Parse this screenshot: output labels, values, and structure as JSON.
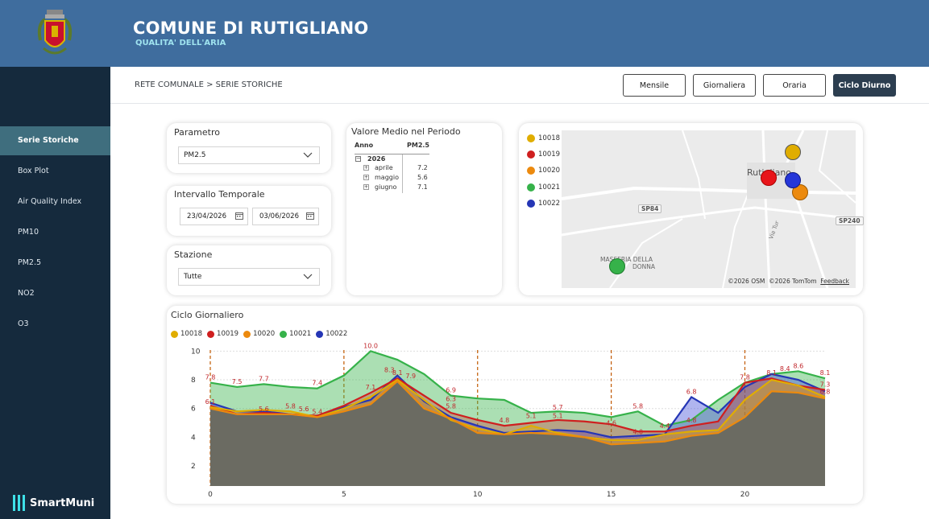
{
  "header": {
    "title": "COMUNE DI RUTIGLIANO",
    "subtitle": "QUALITA' DELL'ARIA"
  },
  "sidebar": {
    "items": [
      {
        "label": "Serie Storiche",
        "active": true
      },
      {
        "label": "Box Plot"
      },
      {
        "label": "Air Quality Index"
      },
      {
        "label": "PM10"
      },
      {
        "label": "PM2.5"
      },
      {
        "label": "NO2"
      },
      {
        "label": "O3"
      }
    ],
    "brand": "SmartMuni"
  },
  "breadcrumb": "RETE COMUNALE > SERIE STORICHE",
  "view_buttons": [
    {
      "label": "Mensile"
    },
    {
      "label": "Giornaliera"
    },
    {
      "label": "Oraria"
    },
    {
      "label": "Ciclo Diurno",
      "active": true
    }
  ],
  "filters": {
    "parametro": {
      "title": "Parametro",
      "value": "PM2.5"
    },
    "intervallo": {
      "title": "Intervallo Temporale",
      "start": "23/04/2026",
      "end": "03/06/2026"
    },
    "stazione": {
      "title": "Stazione",
      "value": "Tutte"
    }
  },
  "valore_medio": {
    "title": "Valore Medio nel Periodo",
    "col_anno": "Anno",
    "col_param": "PM2.5",
    "year": "2026",
    "rows": [
      {
        "month": "aprile",
        "value": "7.2"
      },
      {
        "month": "maggio",
        "value": "5.6"
      },
      {
        "month": "giugno",
        "value": "7.1"
      }
    ]
  },
  "map": {
    "legend": [
      {
        "id": "10018",
        "color": "#e0ad00"
      },
      {
        "id": "10019",
        "color": "#cf1f1f"
      },
      {
        "id": "10020",
        "color": "#ec8a0e"
      },
      {
        "id": "10021",
        "color": "#36b24a"
      },
      {
        "id": "10022",
        "color": "#2536b5"
      }
    ],
    "place_label": "Rutigliano",
    "road_sp84": "SP84",
    "road_sp240": "SP240",
    "area_label_1": "MASSERIA DELLA",
    "area_label_2": "DONNA",
    "road_small": "Via Tur",
    "credit_osm": "©2026 OSM",
    "credit_tomtom": "©2026 TomTom",
    "feedback": "Feedback"
  },
  "chart_data": {
    "type": "area",
    "title": "Ciclo Giornaliero",
    "x": [
      0,
      1,
      2,
      3,
      4,
      5,
      6,
      7,
      8,
      9,
      10,
      11,
      12,
      13,
      14,
      15,
      16,
      17,
      18,
      19,
      20,
      21,
      22,
      23
    ],
    "xticks": [
      0,
      5,
      10,
      15,
      20
    ],
    "yticks": [
      2,
      4,
      6,
      8,
      10
    ],
    "ylim": [
      0.6,
      10.3
    ],
    "vlines": [
      0,
      5,
      10,
      15,
      20
    ],
    "series": [
      {
        "name": "10018",
        "color": "#e0ad00",
        "values": [
          6.1,
          5.8,
          5.9,
          5.8,
          5.4,
          6.0,
          6.8,
          8.0,
          6.6,
          5.2,
          4.6,
          4.2,
          4.8,
          4.3,
          4.0,
          3.8,
          3.8,
          4.2,
          4.4,
          4.5,
          6.6,
          8.0,
          7.6,
          6.8
        ]
      },
      {
        "name": "10019",
        "color": "#cf1f1f",
        "values": [
          6.2,
          5.6,
          5.7,
          5.6,
          5.5,
          6.2,
          7.1,
          8.1,
          6.9,
          5.7,
          5.2,
          4.8,
          5.0,
          5.2,
          5.1,
          4.9,
          4.4,
          4.4,
          4.8,
          5.1,
          7.8,
          8.1,
          7.6,
          7.3
        ]
      },
      {
        "name": "10020",
        "color": "#ec8a0e",
        "values": [
          6.0,
          5.6,
          5.6,
          5.6,
          5.4,
          5.8,
          6.3,
          7.9,
          6.0,
          5.3,
          4.3,
          4.2,
          4.3,
          4.2,
          4.0,
          3.5,
          3.6,
          3.7,
          4.1,
          4.3,
          5.4,
          7.2,
          7.1,
          6.7
        ]
      },
      {
        "name": "10021",
        "color": "#36b24a",
        "values": [
          7.8,
          7.5,
          7.7,
          7.5,
          7.4,
          8.3,
          10.0,
          9.4,
          8.4,
          6.9,
          6.7,
          6.6,
          5.7,
          5.8,
          5.7,
          5.4,
          5.8,
          4.8,
          5.2,
          6.6,
          7.8,
          8.4,
          8.6,
          8.1
        ]
      },
      {
        "name": "10022",
        "color": "#2536b5",
        "values": [
          6.4,
          5.8,
          5.8,
          5.6,
          5.4,
          6.1,
          6.6,
          8.3,
          6.5,
          5.4,
          4.8,
          4.3,
          4.4,
          4.5,
          4.4,
          4.0,
          4.1,
          4.2,
          6.8,
          5.7,
          7.5,
          8.4,
          8.0,
          7.2
        ]
      }
    ],
    "labels": [
      {
        "x": 0,
        "y": 7.8,
        "text": "7.8"
      },
      {
        "x": 0,
        "y": 6.1,
        "text": "6.1"
      },
      {
        "x": 1,
        "y": 7.5,
        "text": "7.5"
      },
      {
        "x": 2,
        "y": 7.7,
        "text": "7.7"
      },
      {
        "x": 2,
        "y": 5.6,
        "text": "5.6"
      },
      {
        "x": 3,
        "y": 5.8,
        "text": "5.8"
      },
      {
        "x": 3.5,
        "y": 5.6,
        "text": "5.6"
      },
      {
        "x": 4,
        "y": 7.4,
        "text": "7.4"
      },
      {
        "x": 4,
        "y": 5.4,
        "text": "5.4"
      },
      {
        "x": 6,
        "y": 10.0,
        "text": "10.0"
      },
      {
        "x": 6,
        "y": 7.1,
        "text": "7.1"
      },
      {
        "x": 6.7,
        "y": 8.3,
        "text": "8.3"
      },
      {
        "x": 7,
        "y": 8.1,
        "text": "8.1"
      },
      {
        "x": 7.5,
        "y": 7.9,
        "text": "7.9"
      },
      {
        "x": 9,
        "y": 6.9,
        "text": "6.9"
      },
      {
        "x": 9,
        "y": 6.3,
        "text": "6.3"
      },
      {
        "x": 9,
        "y": 5.8,
        "text": "5.8"
      },
      {
        "x": 11,
        "y": 4.8,
        "text": "4.8"
      },
      {
        "x": 12,
        "y": 5.1,
        "text": "5.1"
      },
      {
        "x": 13,
        "y": 5.7,
        "text": "5.7"
      },
      {
        "x": 13,
        "y": 5.1,
        "text": "5.1"
      },
      {
        "x": 15,
        "y": 4.6,
        "text": "4.6"
      },
      {
        "x": 16,
        "y": 5.8,
        "text": "5.8"
      },
      {
        "x": 16,
        "y": 4.0,
        "text": "4.0"
      },
      {
        "x": 17,
        "y": 4.4,
        "text": "4.4"
      },
      {
        "x": 18,
        "y": 6.8,
        "text": "6.8"
      },
      {
        "x": 18,
        "y": 4.8,
        "text": "4.8"
      },
      {
        "x": 20,
        "y": 7.8,
        "text": "7.8"
      },
      {
        "x": 21,
        "y": 8.1,
        "text": "8.1"
      },
      {
        "x": 21.5,
        "y": 8.4,
        "text": "8.4"
      },
      {
        "x": 22,
        "y": 8.6,
        "text": "8.6"
      },
      {
        "x": 23,
        "y": 8.1,
        "text": "8.1"
      },
      {
        "x": 23,
        "y": 7.3,
        "text": "7.3"
      },
      {
        "x": 23,
        "y": 6.8,
        "text": "6.8"
      }
    ]
  }
}
